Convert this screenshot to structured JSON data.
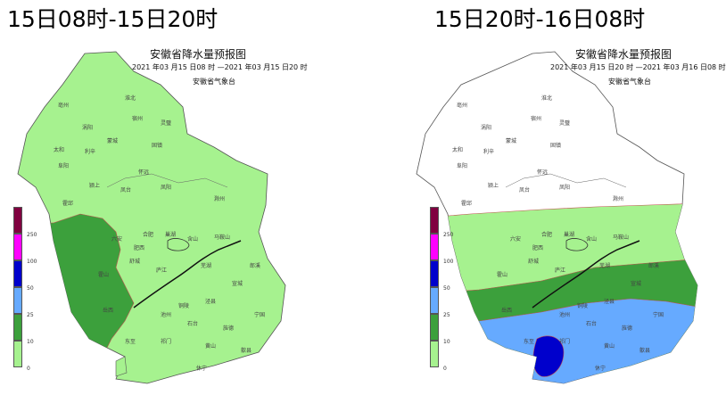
{
  "panels": [
    {
      "heading": "15日08时-15日20时",
      "map_title": "安徽省降水量预报图",
      "date_range": "2021 年03 月15 日08 时 —2021 年03 月15 日20 时",
      "agency": "安徽省气象台"
    },
    {
      "heading": "15日20时-16日08时",
      "map_title": "安徽省降水量预报图",
      "date_range": "2021 年03 月15 日20 时 —2021 年03 月16 日08 时",
      "agency": "安徽省气象台"
    }
  ],
  "legend": {
    "levels": [
      {
        "label": "250",
        "color": "#800040"
      },
      {
        "label": "100",
        "color": "#ff00ff"
      },
      {
        "label": "50",
        "color": "#0000cc"
      },
      {
        "label": "25",
        "color": "#66aaff"
      },
      {
        "label": "10",
        "color": "#3ca03c"
      },
      {
        "label": "0",
        "color": "#a6f28f"
      }
    ]
  },
  "colors": {
    "light_green": "#a6f28f",
    "green": "#3ca03c",
    "light_blue": "#66aaff",
    "blue": "#0000cc",
    "white": "#ffffff"
  }
}
